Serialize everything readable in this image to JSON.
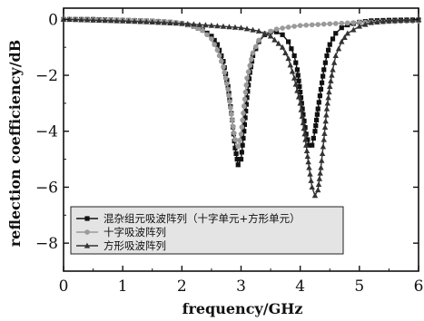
{
  "chart_data": {
    "type": "line",
    "xlabel": "frequency/GHz",
    "ylabel": "reflection coefficiency/dB",
    "xlim": [
      0,
      6
    ],
    "ylim": [
      -9,
      0.4
    ],
    "xticks": [
      0,
      1,
      2,
      3,
      4,
      5,
      6
    ],
    "yticks": [
      0,
      -2,
      -4,
      -6,
      -8
    ],
    "grid": false,
    "legend_position": "bottom-left",
    "series": [
      {
        "name": "混杂组元吸波阵列（十字单元+方形单元）",
        "marker": "square",
        "color": "#111111",
        "x": [
          0,
          0.5,
          1.0,
          1.5,
          1.8,
          2.0,
          2.2,
          2.35,
          2.5,
          2.6,
          2.7,
          2.78,
          2.85,
          2.9,
          2.95,
          3.0,
          3.05,
          3.1,
          3.15,
          3.2,
          3.3,
          3.4,
          3.5,
          3.6,
          3.7,
          3.8,
          3.9,
          3.95,
          4.0,
          4.05,
          4.1,
          4.15,
          4.2,
          4.25,
          4.3,
          4.35,
          4.4,
          4.45,
          4.5,
          4.6,
          4.7,
          4.8,
          5.0,
          5.2,
          5.5,
          5.8,
          6.0
        ],
        "y": [
          0,
          0,
          -0.03,
          -0.06,
          -0.1,
          -0.15,
          -0.25,
          -0.38,
          -0.6,
          -0.9,
          -1.5,
          -2.4,
          -3.6,
          -4.6,
          -5.2,
          -5.0,
          -4.0,
          -2.8,
          -1.9,
          -1.3,
          -0.8,
          -0.55,
          -0.45,
          -0.45,
          -0.55,
          -0.8,
          -1.3,
          -1.8,
          -2.6,
          -3.4,
          -4.1,
          -4.5,
          -4.5,
          -4.0,
          -3.2,
          -2.5,
          -1.8,
          -1.3,
          -0.9,
          -0.5,
          -0.3,
          -0.2,
          -0.1,
          -0.05,
          -0.03,
          -0.02,
          -0.02
        ]
      },
      {
        "name": "十字吸波阵列",
        "marker": "circle",
        "color": "#9a9a9a",
        "x": [
          0,
          0.5,
          1.0,
          1.5,
          1.8,
          2.0,
          2.2,
          2.35,
          2.5,
          2.6,
          2.7,
          2.78,
          2.85,
          2.9,
          2.95,
          3.0,
          3.05,
          3.1,
          3.2,
          3.3,
          3.4,
          3.6,
          3.8,
          4.0,
          4.5,
          5.0,
          5.5,
          6.0
        ],
        "y": [
          0,
          -0.01,
          -0.02,
          -0.05,
          -0.09,
          -0.14,
          -0.25,
          -0.4,
          -0.7,
          -1.1,
          -1.7,
          -2.5,
          -3.6,
          -4.3,
          -4.55,
          -4.1,
          -3.1,
          -2.1,
          -1.2,
          -0.75,
          -0.5,
          -0.35,
          -0.28,
          -0.22,
          -0.16,
          -0.11,
          -0.08,
          -0.06
        ]
      },
      {
        "name": "方形吸波阵列",
        "marker": "triangle",
        "color": "#333333",
        "x": [
          0,
          0.5,
          1.0,
          1.5,
          2.0,
          2.5,
          3.0,
          3.3,
          3.5,
          3.7,
          3.8,
          3.9,
          4.0,
          4.05,
          4.1,
          4.15,
          4.2,
          4.25,
          4.3,
          4.35,
          4.4,
          4.45,
          4.5,
          4.55,
          4.6,
          4.7,
          4.8,
          5.0,
          5.2,
          5.5,
          5.8,
          6.0
        ],
        "y": [
          0,
          -0.03,
          -0.06,
          -0.1,
          -0.15,
          -0.22,
          -0.3,
          -0.42,
          -0.6,
          -1.0,
          -1.4,
          -2.1,
          -3.0,
          -3.7,
          -4.5,
          -5.3,
          -6.0,
          -6.3,
          -6.1,
          -5.3,
          -4.3,
          -3.2,
          -2.4,
          -1.8,
          -1.3,
          -0.8,
          -0.5,
          -0.25,
          -0.12,
          -0.06,
          -0.03,
          -0.02
        ]
      }
    ]
  }
}
